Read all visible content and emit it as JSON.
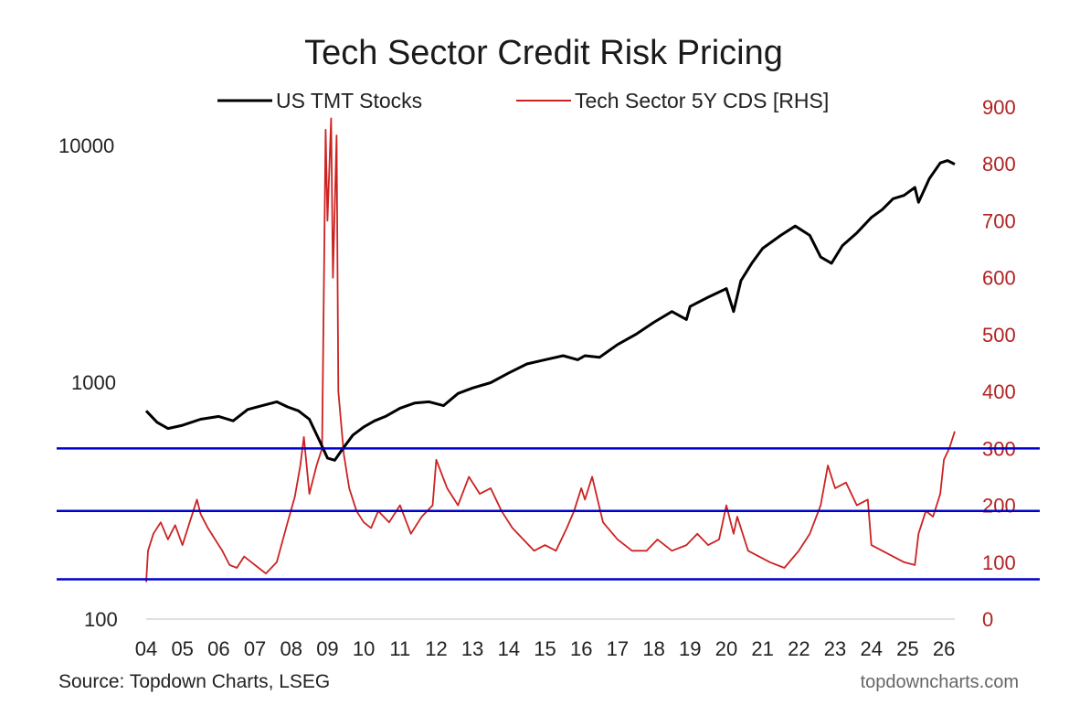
{
  "chart_data": {
    "type": "line",
    "title": "Tech Sector Credit Risk Pricing",
    "source": "Source: Topdown Charts, LSEG",
    "watermark": "topdowncharts.com",
    "legend_position": "top",
    "grid": false,
    "colors": {
      "stocks": "#000000",
      "cds": "#cc2222",
      "reference_lines": "#0000cc",
      "baseline": "#dddddd"
    },
    "x_ticks": [
      "04",
      "05",
      "06",
      "07",
      "08",
      "09",
      "10",
      "11",
      "12",
      "13",
      "14",
      "15",
      "16",
      "17",
      "18",
      "19",
      "20",
      "21",
      "22",
      "23",
      "24",
      "25",
      "26"
    ],
    "left_axis": {
      "scale": "log",
      "range": [
        100,
        10000
      ],
      "ticks": [
        "10000",
        "1000",
        "100"
      ],
      "tick_values": [
        10000,
        1000,
        100
      ]
    },
    "right_axis": {
      "scale": "linear",
      "range": [
        0,
        900
      ],
      "ticks": [
        "900",
        "800",
        "700",
        "600",
        "500",
        "400",
        "300",
        "200",
        "100",
        "0"
      ],
      "tick_values": [
        900,
        800,
        700,
        600,
        500,
        400,
        300,
        200,
        100,
        0
      ]
    },
    "reference_lines_rhs": [
      300,
      190,
      70
    ],
    "series": [
      {
        "name": "US TMT Stocks",
        "axis": "left",
        "x": [
          2004.0,
          2004.3,
          2004.6,
          2005.0,
          2005.5,
          2006.0,
          2006.4,
          2006.8,
          2007.2,
          2007.6,
          2007.9,
          2008.2,
          2008.5,
          2008.8,
          2009.0,
          2009.2,
          2009.4,
          2009.7,
          2010.0,
          2010.3,
          2010.6,
          2011.0,
          2011.4,
          2011.8,
          2012.2,
          2012.6,
          2013.0,
          2013.5,
          2014.0,
          2014.5,
          2015.0,
          2015.5,
          2015.9,
          2016.1,
          2016.5,
          2017.0,
          2017.5,
          2018.0,
          2018.5,
          2018.9,
          2019.0,
          2019.5,
          2020.0,
          2020.2,
          2020.4,
          2020.7,
          2021.0,
          2021.5,
          2021.9,
          2022.3,
          2022.6,
          2022.9,
          2023.2,
          2023.6,
          2024.0,
          2024.3,
          2024.6,
          2024.9,
          2025.2,
          2025.3,
          2025.6,
          2025.9,
          2026.1,
          2026.3
        ],
        "values": [
          760,
          680,
          640,
          660,
          700,
          720,
          690,
          770,
          800,
          830,
          790,
          760,
          700,
          560,
          480,
          470,
          520,
          600,
          650,
          690,
          720,
          780,
          820,
          830,
          800,
          900,
          950,
          1000,
          1100,
          1200,
          1250,
          1300,
          1250,
          1300,
          1280,
          1450,
          1600,
          1800,
          2000,
          1850,
          2100,
          2300,
          2500,
          2000,
          2700,
          3200,
          3700,
          4200,
          4600,
          4200,
          3400,
          3200,
          3800,
          4300,
          5000,
          5400,
          6000,
          6200,
          6700,
          5800,
          7300,
          8500,
          8700,
          8400
        ]
      },
      {
        "name": "Tech Sector 5Y CDS [RHS]",
        "axis": "right",
        "x": [
          2004.0,
          2004.05,
          2004.2,
          2004.4,
          2004.6,
          2004.8,
          2005.0,
          2005.2,
          2005.4,
          2005.5,
          2005.7,
          2005.9,
          2006.1,
          2006.3,
          2006.5,
          2006.7,
          2006.9,
          2007.1,
          2007.3,
          2007.6,
          2007.9,
          2008.1,
          2008.25,
          2008.35,
          2008.5,
          2008.7,
          2008.85,
          2008.95,
          2009.0,
          2009.1,
          2009.15,
          2009.25,
          2009.3,
          2009.45,
          2009.6,
          2009.8,
          2010.0,
          2010.2,
          2010.4,
          2010.7,
          2011.0,
          2011.3,
          2011.6,
          2011.9,
          2012.0,
          2012.3,
          2012.6,
          2012.9,
          2013.2,
          2013.5,
          2013.8,
          2014.1,
          2014.4,
          2014.7,
          2015.0,
          2015.3,
          2015.6,
          2015.8,
          2016.0,
          2016.1,
          2016.3,
          2016.6,
          2017.0,
          2017.4,
          2017.8,
          2018.1,
          2018.5,
          2018.9,
          2019.2,
          2019.5,
          2019.8,
          2020.0,
          2020.2,
          2020.3,
          2020.6,
          2020.9,
          2021.2,
          2021.6,
          2022.0,
          2022.3,
          2022.6,
          2022.8,
          2023.0,
          2023.3,
          2023.6,
          2023.9,
          2024.0,
          2024.3,
          2024.6,
          2024.9,
          2025.2,
          2025.3,
          2025.5,
          2025.7,
          2025.9,
          2026.0,
          2026.15,
          2026.3
        ],
        "values": [
          65,
          120,
          150,
          170,
          140,
          165,
          130,
          170,
          210,
          185,
          160,
          140,
          120,
          95,
          90,
          110,
          100,
          90,
          80,
          100,
          170,
          215,
          270,
          320,
          220,
          270,
          300,
          860,
          700,
          880,
          600,
          850,
          400,
          290,
          230,
          190,
          170,
          160,
          190,
          170,
          200,
          150,
          180,
          200,
          280,
          230,
          200,
          250,
          220,
          230,
          190,
          160,
          140,
          120,
          130,
          120,
          160,
          190,
          230,
          210,
          250,
          170,
          140,
          120,
          120,
          140,
          120,
          130,
          150,
          130,
          140,
          200,
          150,
          180,
          120,
          110,
          100,
          90,
          120,
          150,
          200,
          270,
          230,
          240,
          200,
          210,
          130,
          120,
          110,
          100,
          95,
          150,
          190,
          180,
          220,
          280,
          300,
          330
        ]
      }
    ]
  }
}
